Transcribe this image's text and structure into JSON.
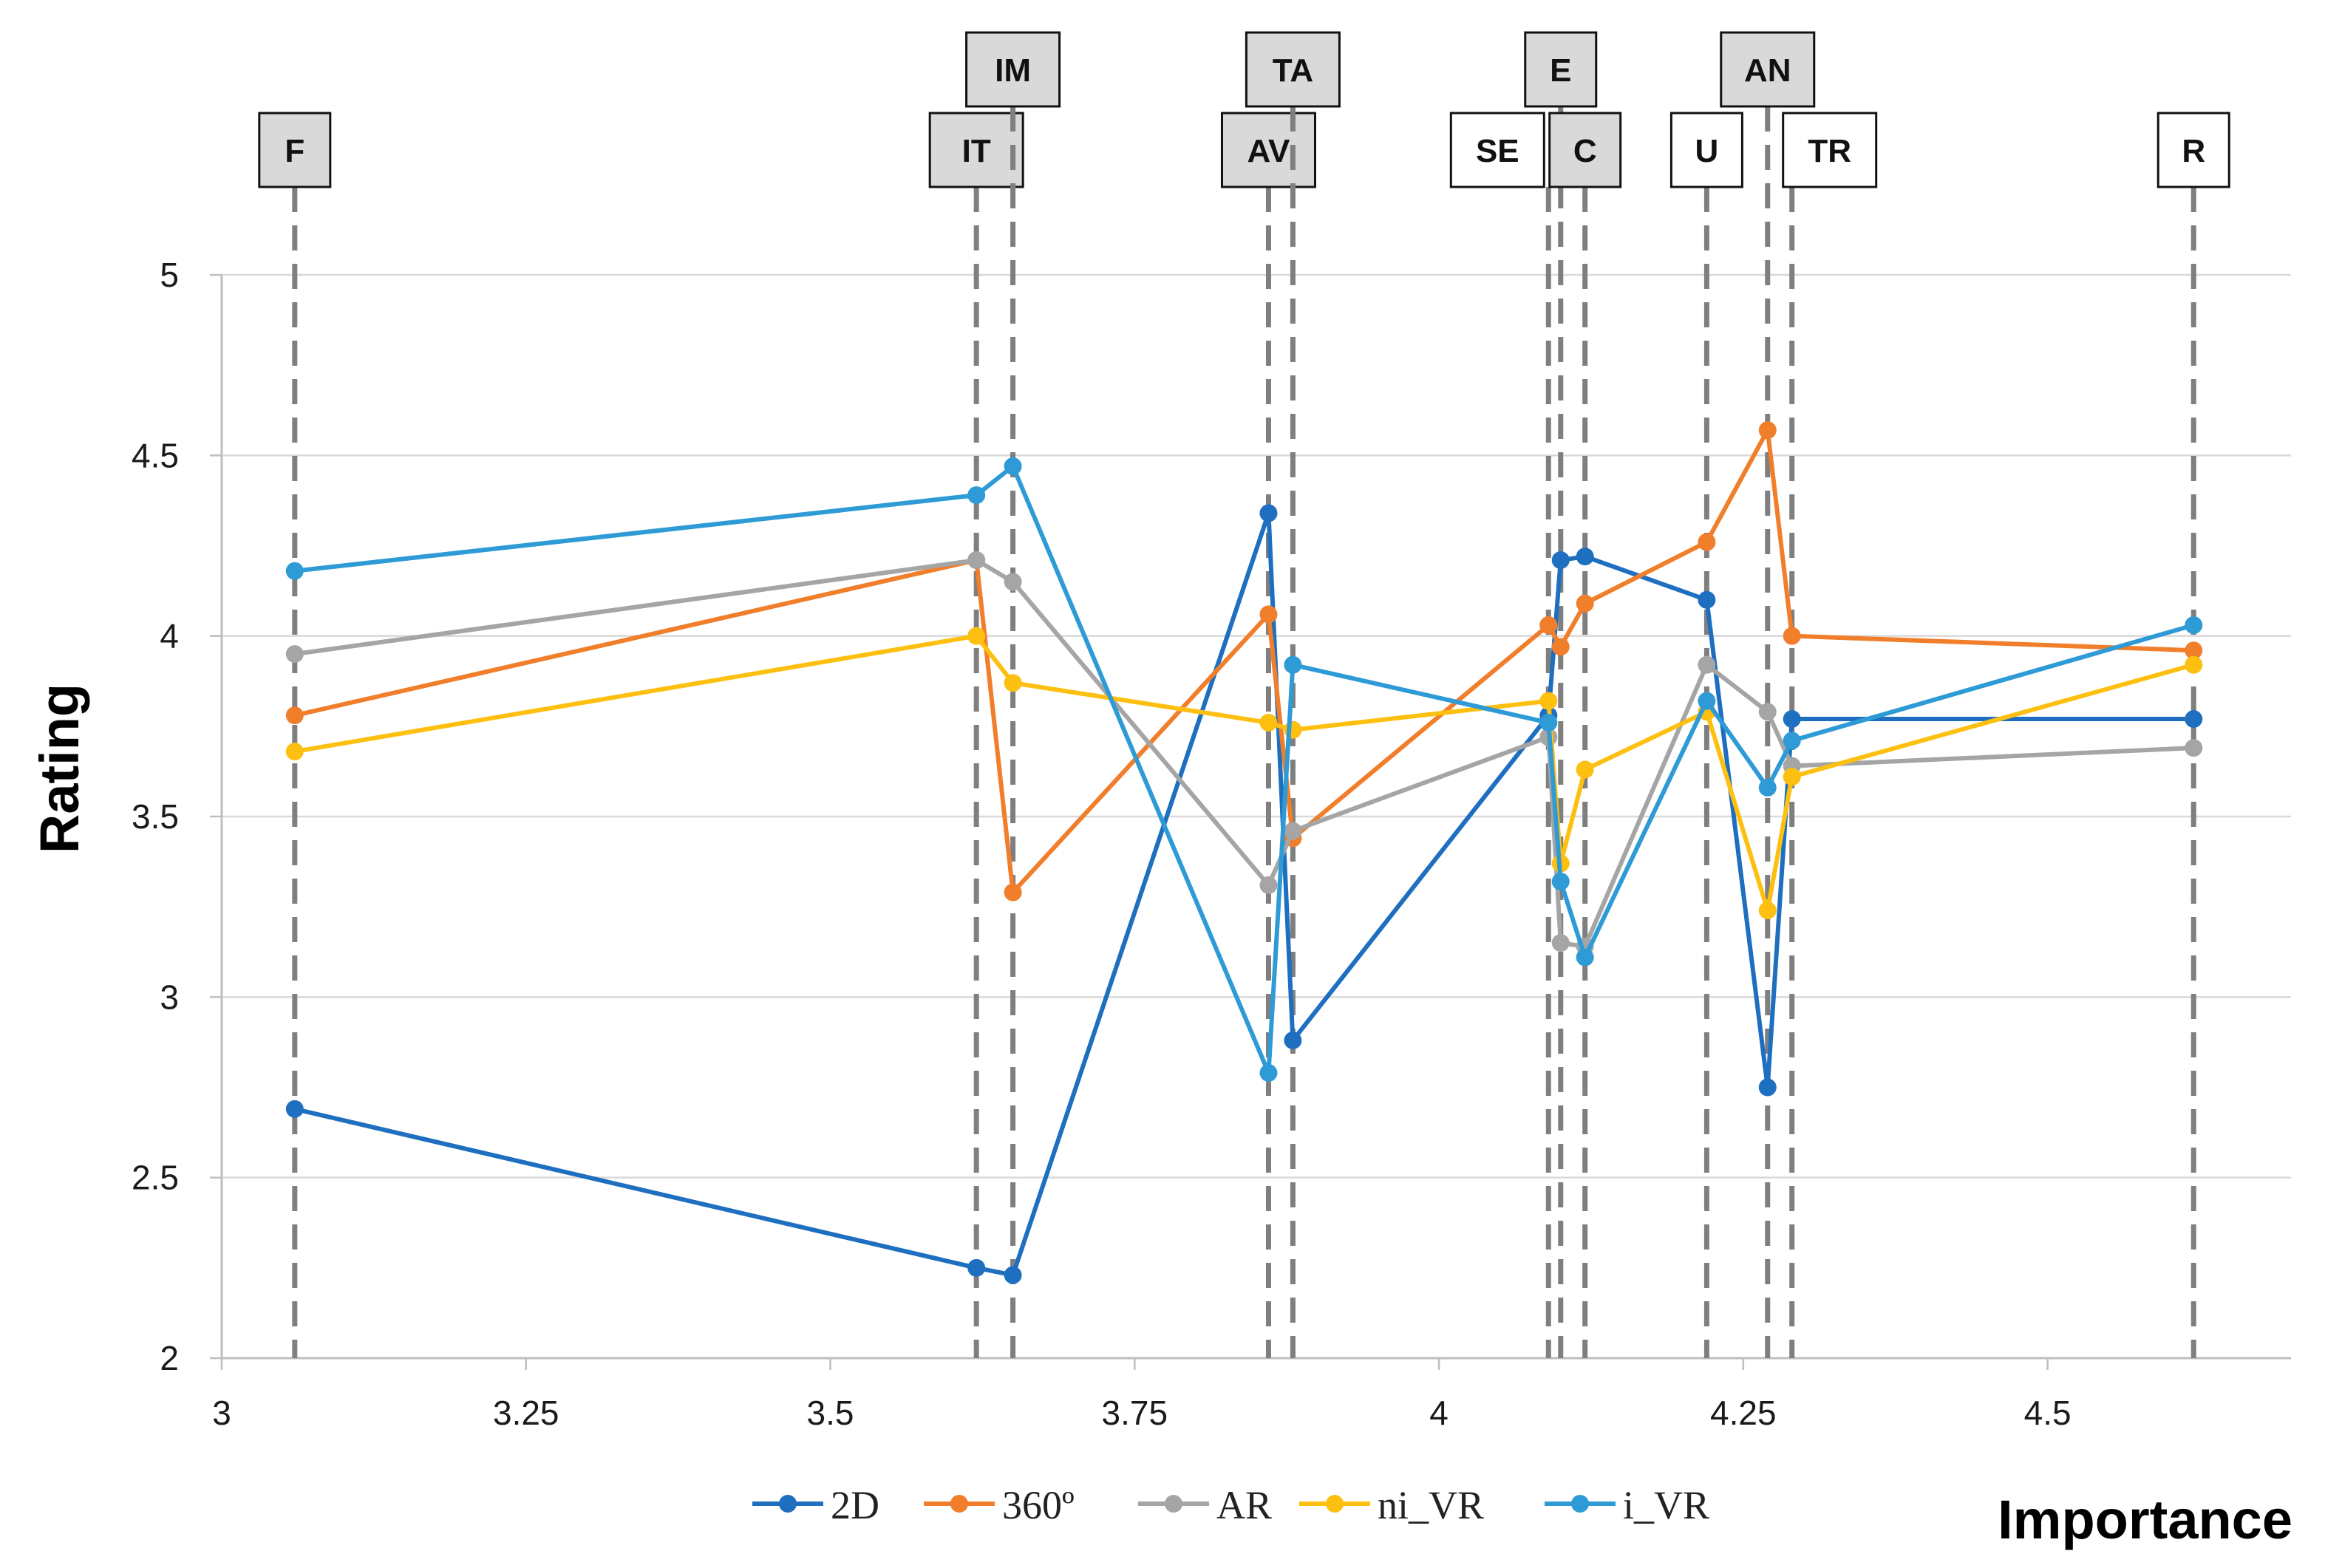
{
  "chart_data": {
    "type": "line",
    "title": "",
    "xlabel": "Importance",
    "ylabel": "Rating",
    "xlim": [
      3,
      4.7
    ],
    "ylim": [
      2,
      5
    ],
    "xticks": [
      "3",
      "3.25",
      "3.5",
      "3.75",
      "4",
      "4.25",
      "4.5"
    ],
    "yticks": [
      "2",
      "2.5",
      "3",
      "3.5",
      "4",
      "4.5",
      "5"
    ],
    "grid": "horizontal",
    "legend_position": "bottom",
    "categories": [
      {
        "label": "F",
        "x": 3.06,
        "shaded": true
      },
      {
        "label": "IT",
        "x": 3.62,
        "shaded": true
      },
      {
        "label": "IM",
        "x": 3.65,
        "shaded": true
      },
      {
        "label": "AV",
        "x": 3.86,
        "shaded": true
      },
      {
        "label": "TA",
        "x": 3.88,
        "shaded": true
      },
      {
        "label": "SE",
        "x": 4.09,
        "shaded": false
      },
      {
        "label": "E",
        "x": 4.1,
        "shaded": true
      },
      {
        "label": "C",
        "x": 4.12,
        "shaded": true
      },
      {
        "label": "U",
        "x": 4.22,
        "shaded": false
      },
      {
        "label": "AN",
        "x": 4.27,
        "shaded": true
      },
      {
        "label": "TR",
        "x": 4.29,
        "shaded": false
      },
      {
        "label": "R",
        "x": 4.62,
        "shaded": false
      }
    ],
    "x": [
      3.06,
      3.62,
      3.65,
      3.86,
      3.88,
      4.09,
      4.1,
      4.12,
      4.22,
      4.27,
      4.29,
      4.62
    ],
    "series": [
      {
        "name": "2D",
        "color": "#1f6fc0",
        "values": [
          2.69,
          2.25,
          2.23,
          4.34,
          2.88,
          3.78,
          4.21,
          4.22,
          4.1,
          2.75,
          3.77,
          3.77
        ]
      },
      {
        "name": "360º",
        "color": "#f07e2b",
        "values": [
          3.78,
          4.21,
          3.29,
          4.06,
          3.44,
          4.03,
          3.97,
          4.09,
          4.26,
          4.57,
          4.0,
          3.96
        ]
      },
      {
        "name": "AR",
        "color": "#a5a5a5",
        "values": [
          3.95,
          4.21,
          4.15,
          3.31,
          3.46,
          3.72,
          3.15,
          3.14,
          3.92,
          3.79,
          3.64,
          3.69
        ]
      },
      {
        "name": "ni_VR",
        "color": "#fdc010",
        "values": [
          3.68,
          4.0,
          3.87,
          3.76,
          3.74,
          3.82,
          3.37,
          3.63,
          3.79,
          3.24,
          3.61,
          3.92
        ]
      },
      {
        "name": "i_VR",
        "color": "#2e9bd6",
        "values": [
          4.18,
          4.39,
          4.47,
          2.79,
          3.92,
          3.76,
          3.32,
          3.11,
          3.82,
          3.58,
          3.71,
          4.03
        ]
      }
    ]
  }
}
